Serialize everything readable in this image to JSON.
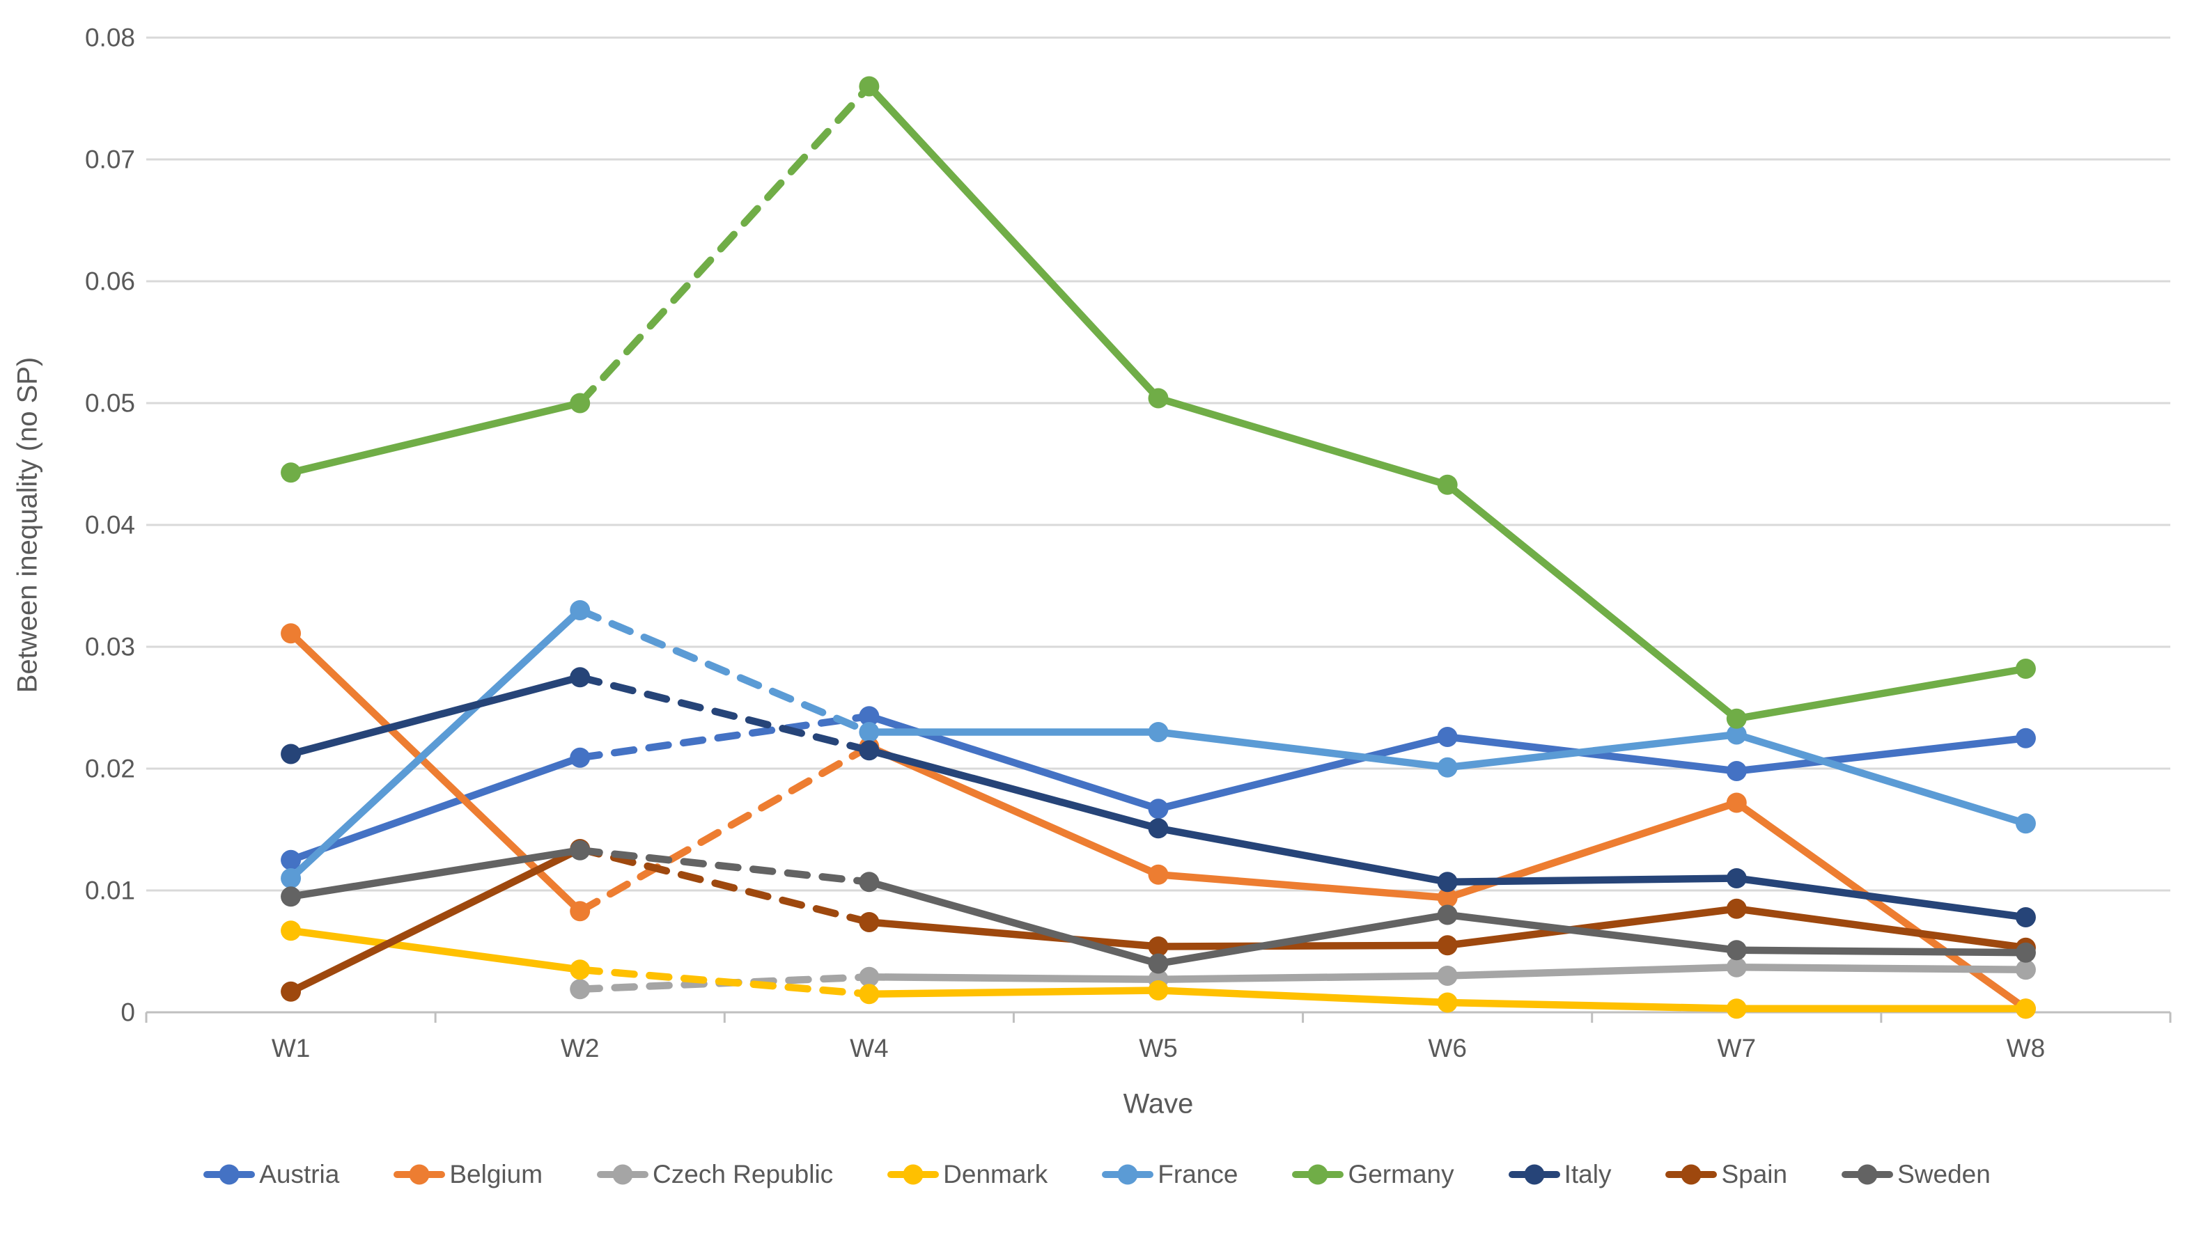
{
  "chart_data": {
    "type": "line",
    "title": "",
    "xlabel": "Wave",
    "ylabel": "Between inequality (no SP)",
    "categories": [
      "W1",
      "W2",
      "W4",
      "W5",
      "W6",
      "W7",
      "W8"
    ],
    "ylim": [
      0,
      0.08
    ],
    "ytick_step": 0.01,
    "ytick_labels": [
      "0",
      "0.01",
      "0.02",
      "0.03",
      "0.04",
      "0.05",
      "0.06",
      "0.07",
      "0.08"
    ],
    "grid": true,
    "legend_position": "bottom",
    "marker_style": "circle-on-line",
    "dashed_segment_start_indices": [
      1
    ],
    "dashed_note": "all series use a dashed segment between W2 and W4",
    "series": [
      {
        "name": "Austria",
        "color": "#4472C4",
        "values": [
          0.0125,
          0.0209,
          0.0243,
          0.0167,
          0.0226,
          0.0198,
          0.0225
        ]
      },
      {
        "name": "Belgium",
        "color": "#ED7D31",
        "values": [
          0.0311,
          0.0083,
          0.0218,
          0.0113,
          0.0094,
          0.0172,
          0.0003
        ]
      },
      {
        "name": "Czech Republic",
        "color": "#A5A5A5",
        "values": [
          null,
          0.0019,
          0.0029,
          0.0027,
          0.003,
          0.0037,
          0.0035
        ]
      },
      {
        "name": "Denmark",
        "color": "#FFC000",
        "values": [
          0.0067,
          0.0035,
          0.0015,
          0.0018,
          0.0008,
          0.0003,
          0.0003
        ]
      },
      {
        "name": "France",
        "color": "#5B9BD5",
        "values": [
          0.011,
          0.033,
          0.023,
          0.023,
          0.0201,
          0.0228,
          0.0155
        ]
      },
      {
        "name": "Germany",
        "color": "#70AD47",
        "values": [
          0.0443,
          0.05,
          0.076,
          0.0504,
          0.0433,
          0.0241,
          0.0282
        ]
      },
      {
        "name": "Italy",
        "color": "#264478",
        "values": [
          0.0212,
          0.0275,
          0.0215,
          0.0151,
          0.0107,
          0.011,
          0.0078
        ]
      },
      {
        "name": "Spain",
        "color": "#9E480E",
        "values": [
          0.0017,
          0.0134,
          0.0074,
          0.0054,
          0.0055,
          0.0085,
          0.0053
        ]
      },
      {
        "name": "Sweden",
        "color": "#636363",
        "values": [
          0.0095,
          0.0133,
          0.0107,
          0.004,
          0.008,
          0.0051,
          0.0049
        ]
      }
    ],
    "gridline_color": "#D9D9D9",
    "axis_line_color": "#BFBFBF",
    "text_color": "#595959"
  }
}
